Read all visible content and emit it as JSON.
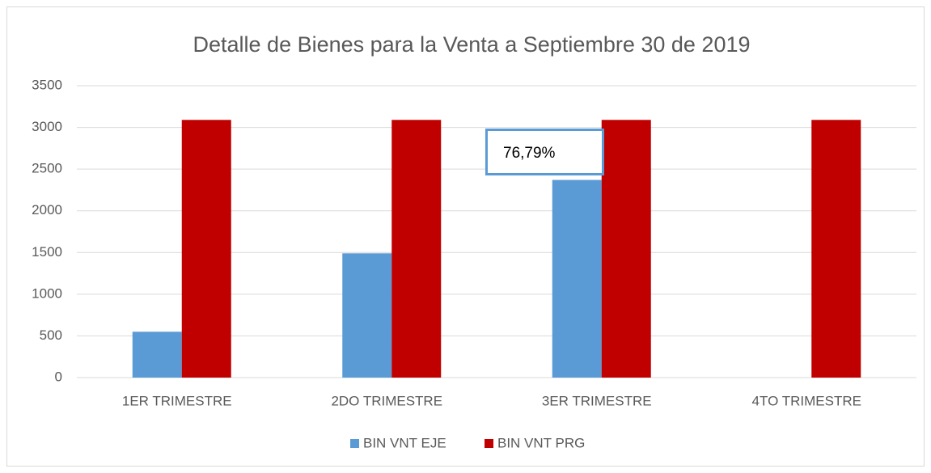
{
  "chart_data": {
    "type": "bar",
    "title": "Detalle de Bienes para la Venta a Septiembre 30 de 2019",
    "categories": [
      "1ER TRIMESTRE",
      "2DO TRIMESTRE",
      "3ER TRIMESTRE",
      "4TO TRIMESTRE"
    ],
    "series": [
      {
        "name": "BIN VNT EJE",
        "color": "#5b9bd5",
        "values": [
          550,
          1490,
          2370,
          null
        ]
      },
      {
        "name": "BIN VNT PRG",
        "color": "#c00000",
        "values": [
          3090,
          3090,
          3090,
          3090
        ]
      }
    ],
    "annotation": "76,79%",
    "ylim": [
      0,
      3500
    ],
    "yticks": [
      0,
      500,
      1000,
      1500,
      2000,
      2500,
      3000,
      3500
    ],
    "grid": true,
    "legend": "bottom"
  }
}
